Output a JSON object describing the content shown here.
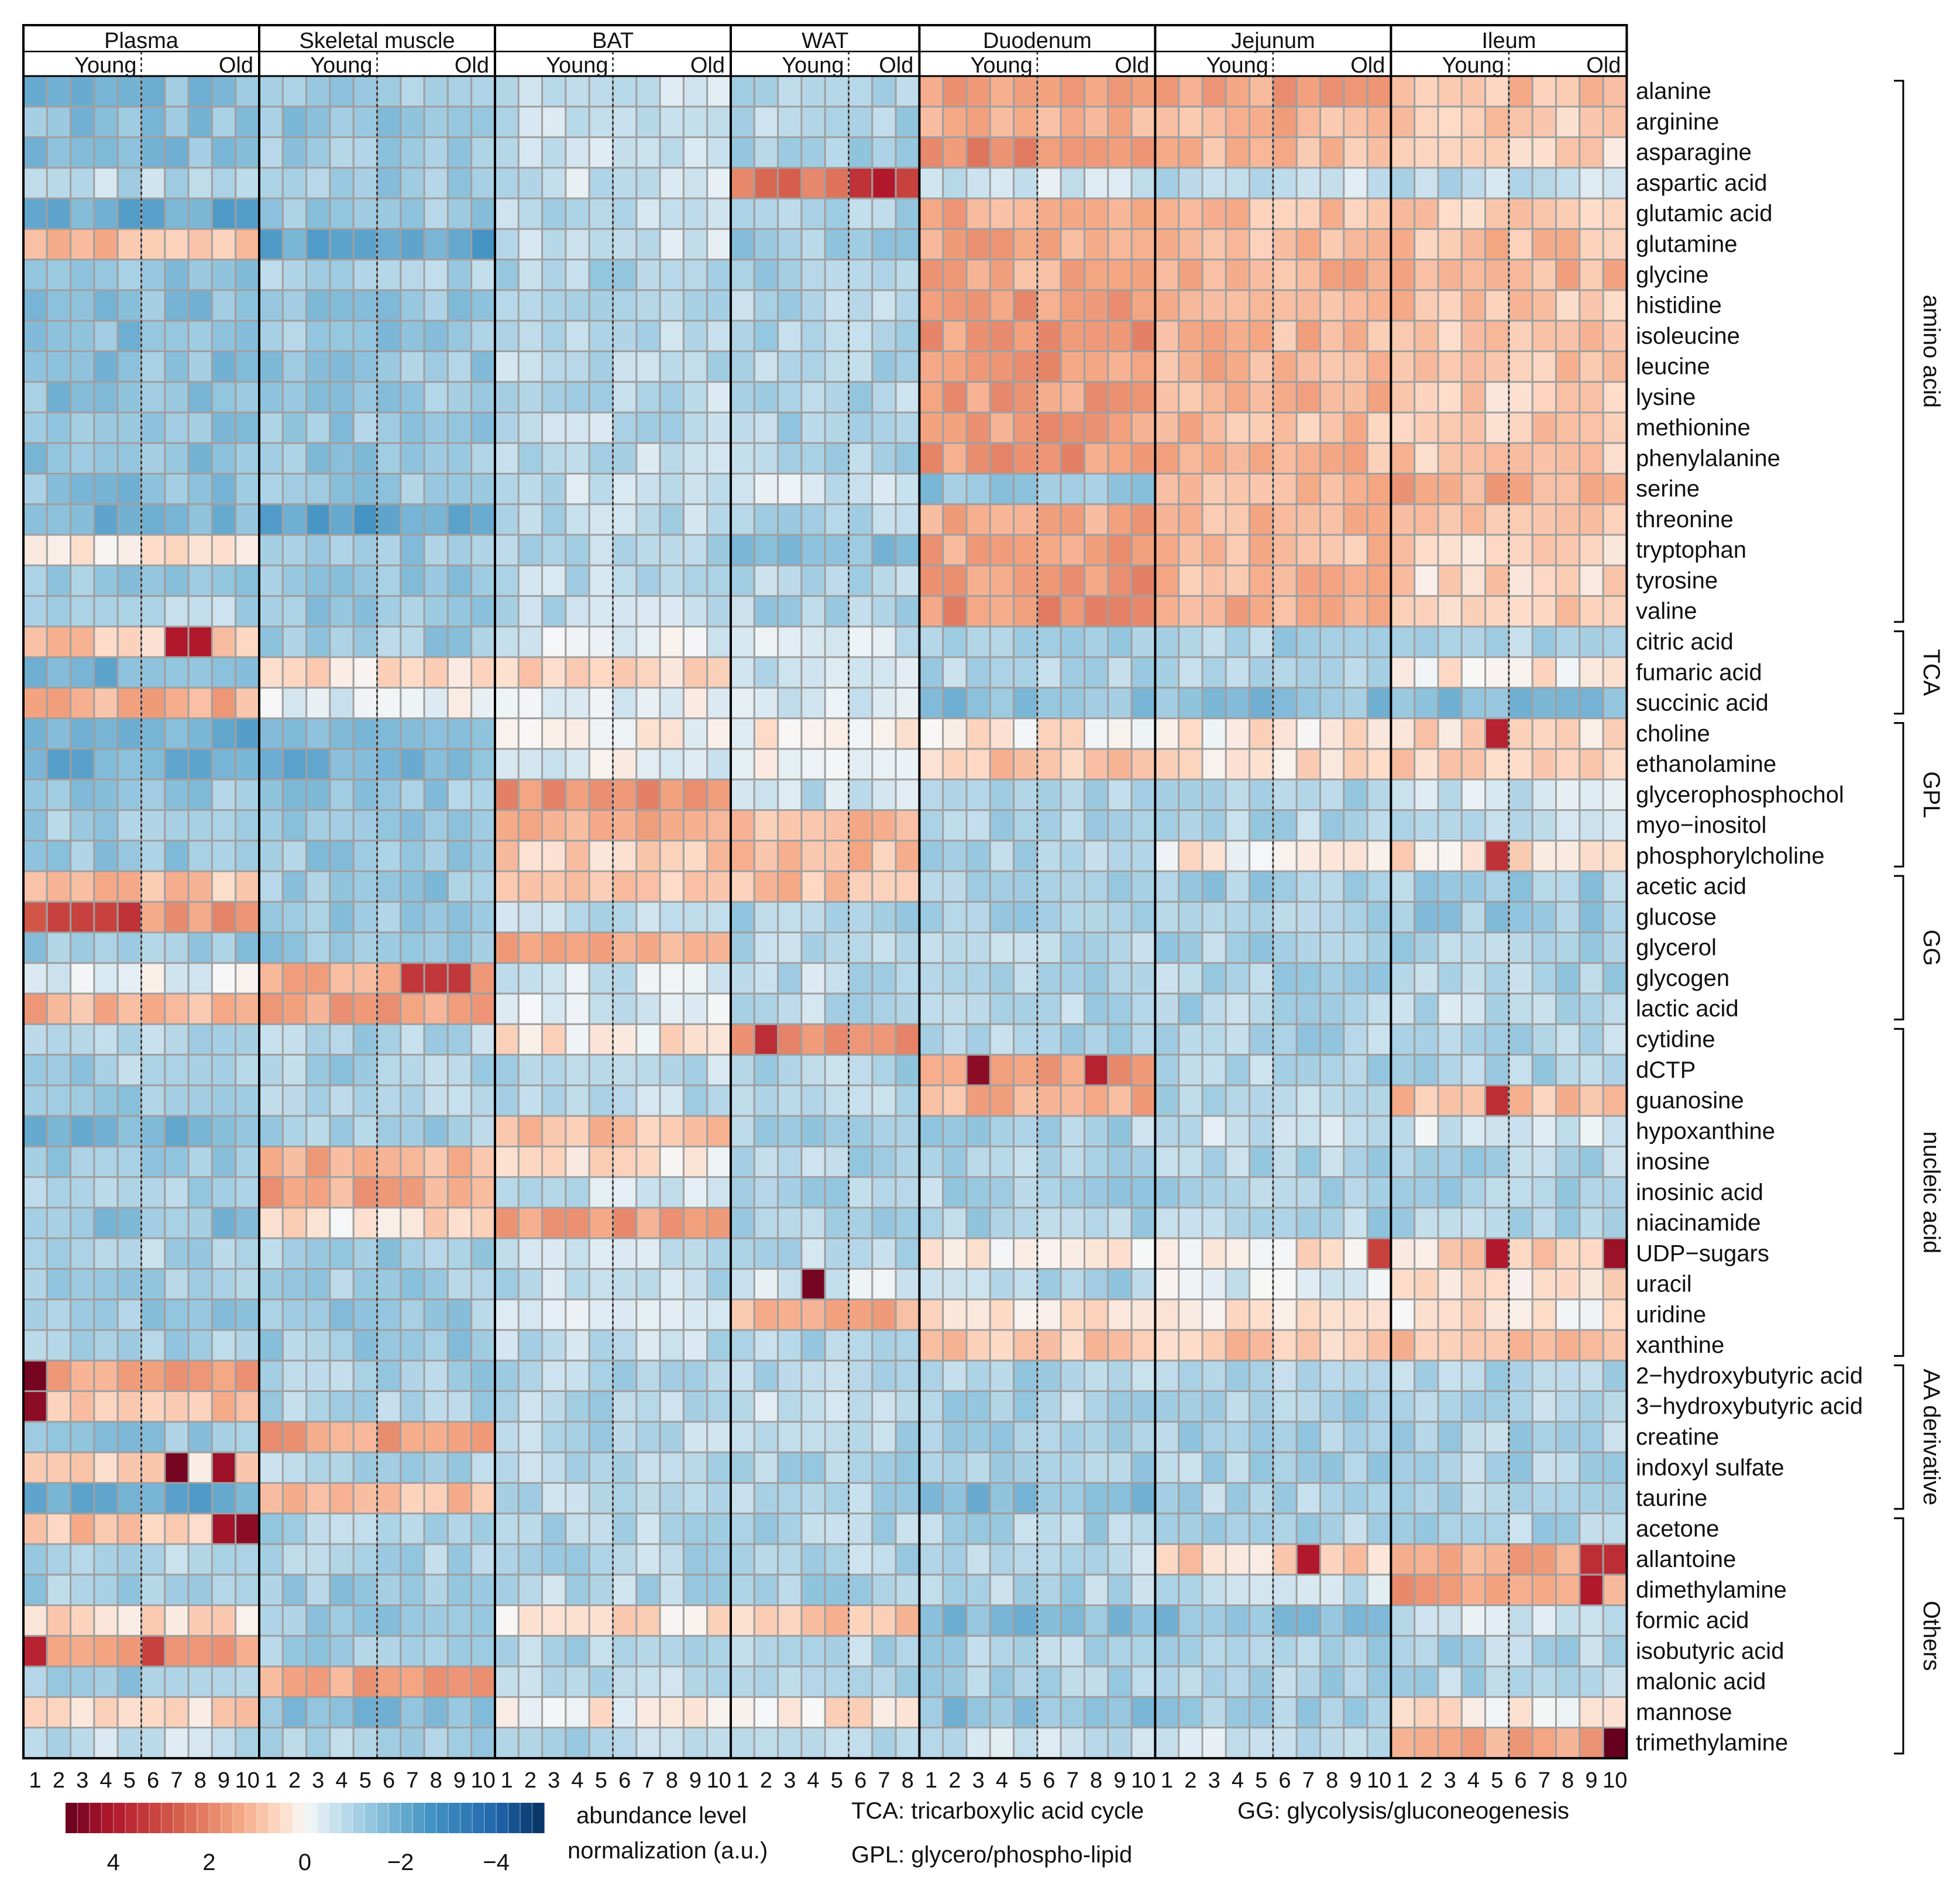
{
  "chart_data": {
    "type": "heatmap",
    "value_scale": "abundance level normalization (a.u.), blue = low, red = high",
    "tissues": [
      {
        "name": "Plasma",
        "n": 10,
        "young_label": "Young",
        "old_label": "Old",
        "split_after": 5
      },
      {
        "name": "Skeletal muscle",
        "n": 10,
        "young_label": "Young",
        "old_label": "Old",
        "split_after": 5
      },
      {
        "name": "BAT",
        "n": 10,
        "young_label": "Young",
        "old_label": "Old",
        "split_after": 5
      },
      {
        "name": "WAT",
        "n": 8,
        "young_label": "Young",
        "old_label": "Old",
        "split_after": 5
      },
      {
        "name": "Duodenum",
        "n": 10,
        "young_label": "Young",
        "old_label": "Old",
        "split_after": 5
      },
      {
        "name": "Jejunum",
        "n": 10,
        "young_label": "Young",
        "old_label": "Old",
        "split_after": 5
      },
      {
        "name": "Ileum",
        "n": 10,
        "young_label": "Young",
        "old_label": "Old",
        "split_after": 5
      }
    ],
    "sample_labels": [
      "1",
      "2",
      "3",
      "4",
      "5",
      "6",
      "7",
      "8",
      "9",
      "10"
    ],
    "metabolites": [
      "alanine",
      "arginine",
      "asparagine",
      "aspartic acid",
      "glutamic acid",
      "glutamine",
      "glycine",
      "histidine",
      "isoleucine",
      "leucine",
      "lysine",
      "methionine",
      "phenylalanine",
      "serine",
      "threonine",
      "tryptophan",
      "tyrosine",
      "valine",
      "citric acid",
      "fumaric acid",
      "succinic acid",
      "choline",
      "ethanolamine",
      "glycerophosphochol",
      "myo−inositol",
      "phosphorylcholine",
      "acetic acid",
      "glucose",
      "glycerol",
      "glycogen",
      "lactic acid",
      "cytidine",
      "dCTP",
      "guanosine",
      "hypoxanthine",
      "inosine",
      "inosinic acid",
      "niacinamide",
      "UDP−sugars",
      "uracil",
      "uridine",
      "xanthine",
      "2−hydroxybutyric acid",
      "3−hydroxybutyric acid",
      "creatine",
      "indoxyl sulfate",
      "taurine",
      "acetone",
      "allantoine",
      "dimethylamine",
      "formic acid",
      "isobutyric acid",
      "malonic acid",
      "mannose",
      "trimethylamine"
    ],
    "groups": [
      {
        "label": "amino acid",
        "start": 0,
        "end": 17
      },
      {
        "label": "TCA",
        "start": 18,
        "end": 20
      },
      {
        "label": "GPL",
        "start": 21,
        "end": 25
      },
      {
        "label": "GG",
        "start": 26,
        "end": 30
      },
      {
        "label": "nucleic acid",
        "start": 31,
        "end": 41
      },
      {
        "label": "AA derivative",
        "start": 42,
        "end": 46
      },
      {
        "label": "Others",
        "start": 47,
        "end": 54
      }
    ],
    "base_values": [
      [
        -1.6,
        -1.3,
        -0.7,
        -1.0,
        1.5,
        1.5,
        1.0
      ],
      [
        -1.5,
        -1.3,
        -0.7,
        -1.0,
        1.3,
        1.2,
        0.8
      ],
      [
        -1.5,
        -1.3,
        -0.7,
        -1.0,
        1.8,
        1.0,
        0.6
      ],
      [
        -0.8,
        -1.3,
        -0.6,
        2.2,
        -0.6,
        -0.7,
        -0.7
      ],
      [
        -2.0,
        -1.3,
        -0.8,
        -1.0,
        1.3,
        1.0,
        0.8
      ],
      [
        1.0,
        -2.2,
        -0.5,
        -1.2,
        1.3,
        1.0,
        1.0
      ],
      [
        -1.5,
        -1.0,
        -1.0,
        -1.0,
        1.3,
        1.2,
        1.1
      ],
      [
        -1.5,
        -1.3,
        -0.8,
        -1.0,
        1.5,
        1.2,
        0.9
      ],
      [
        -1.5,
        -1.3,
        -0.8,
        -1.0,
        1.6,
        1.1,
        0.8
      ],
      [
        -1.5,
        -1.3,
        -0.8,
        -1.0,
        1.6,
        1.1,
        0.8
      ],
      [
        -1.5,
        -1.3,
        -0.8,
        -1.0,
        1.5,
        1.1,
        0.7
      ],
      [
        -1.5,
        -1.3,
        -0.8,
        -1.0,
        1.5,
        1.0,
        0.7
      ],
      [
        -1.5,
        -1.3,
        -0.8,
        -1.0,
        1.6,
        1.1,
        0.8
      ],
      [
        -1.5,
        -1.3,
        -0.7,
        -0.5,
        -1.5,
        1.2,
        1.3
      ],
      [
        -1.8,
        -2.2,
        -0.8,
        -0.9,
        1.3,
        1.1,
        0.8
      ],
      [
        0.3,
        -1.4,
        -0.9,
        -1.5,
        1.4,
        1.0,
        0.6
      ],
      [
        -1.4,
        -1.3,
        -0.8,
        -1.0,
        1.6,
        1.1,
        0.6
      ],
      [
        -1.0,
        -1.3,
        -0.8,
        -1.0,
        1.7,
        1.2,
        0.8
      ],
      [
        0.8,
        -1.2,
        -0.3,
        -0.5,
        -1.3,
        -1.1,
        -1.0
      ],
      [
        -1.8,
        0.5,
        0.7,
        -0.7,
        -1.0,
        -1.0,
        0.2
      ],
      [
        1.2,
        -0.2,
        -0.2,
        -0.5,
        -1.5,
        -1.5,
        -1.5
      ],
      [
        -1.9,
        -1.8,
        0.1,
        0.1,
        0.3,
        0.3,
        0.5
      ],
      [
        -1.9,
        -1.8,
        -0.2,
        -0.1,
        0.8,
        0.5,
        0.6
      ],
      [
        -1.3,
        -1.3,
        1.6,
        -0.7,
        -1.0,
        -1.0,
        -0.6
      ],
      [
        -1.2,
        -1.3,
        1.2,
        1.0,
        -1.0,
        -1.0,
        -0.7
      ],
      [
        -1.3,
        -1.3,
        0.7,
        1.0,
        -1.0,
        0.2,
        0.4
      ],
      [
        0.9,
        -1.3,
        0.8,
        0.9,
        -1.2,
        -1.2,
        -1.2
      ],
      [
        1.6,
        -1.3,
        -0.8,
        -1.0,
        -1.1,
        -1.2,
        -1.3
      ],
      [
        -1.3,
        -1.3,
        1.3,
        -1.0,
        -1.0,
        -1.0,
        -1.0
      ],
      [
        -0.3,
        1.4,
        -0.5,
        -0.8,
        -1.0,
        -1.0,
        -1.0
      ],
      [
        1.2,
        1.5,
        -0.4,
        -0.8,
        -1.0,
        -1.0,
        -0.8
      ],
      [
        -1.0,
        -1.0,
        0.3,
        1.8,
        -1.0,
        -1.0,
        -1.0
      ],
      [
        -1.1,
        -1.1,
        -0.8,
        -1.0,
        1.5,
        -1.0,
        -1.0
      ],
      [
        -1.1,
        -1.0,
        -0.8,
        -1.0,
        1.2,
        -1.0,
        0.9
      ],
      [
        -1.8,
        -1.2,
        1.0,
        -1.0,
        -1.0,
        -0.6,
        -0.5
      ],
      [
        -1.2,
        1.2,
        0.3,
        -1.0,
        -1.0,
        -1.0,
        -1.0
      ],
      [
        -1.2,
        1.4,
        -0.6,
        -1.0,
        -1.0,
        -1.0,
        -1.0
      ],
      [
        -1.5,
        0.4,
        1.5,
        -1.0,
        -1.0,
        -1.0,
        -1.0
      ],
      [
        -1.0,
        -1.2,
        -0.6,
        -0.8,
        0.1,
        0.3,
        0.6
      ],
      [
        -1.2,
        -1.2,
        -0.8,
        -0.5,
        -1.0,
        -0.3,
        0.4
      ],
      [
        -1.2,
        -1.2,
        -0.3,
        1.2,
        0.2,
        0.3,
        0.3
      ],
      [
        -1.2,
        -1.2,
        -0.8,
        -1.0,
        0.8,
        0.8,
        0.9
      ],
      [
        1.5,
        -1.1,
        -0.9,
        -1.0,
        -1.0,
        -1.0,
        -1.0
      ],
      [
        1.0,
        -1.1,
        -0.9,
        -0.5,
        -1.0,
        -1.0,
        -1.0
      ],
      [
        -1.4,
        1.5,
        -0.9,
        -1.0,
        -1.0,
        -1.0,
        -1.0
      ],
      [
        0.5,
        -1.0,
        -0.9,
        -1.0,
        -1.0,
        -1.0,
        -1.0
      ],
      [
        -2.0,
        0.9,
        -0.9,
        -1.0,
        -1.6,
        -1.0,
        -1.0
      ],
      [
        0.9,
        -1.0,
        -0.9,
        -1.0,
        -1.0,
        -1.0,
        -1.0
      ],
      [
        -1.0,
        -1.0,
        -0.9,
        -1.0,
        -0.9,
        0.6,
        1.4
      ],
      [
        -1.2,
        -1.2,
        -0.9,
        -1.0,
        -1.0,
        -0.6,
        1.5
      ],
      [
        0.5,
        -1.2,
        0.4,
        0.8,
        -1.6,
        -1.5,
        -0.6
      ],
      [
        1.4,
        -1.2,
        -0.9,
        -1.0,
        -1.0,
        -1.0,
        -1.0
      ],
      [
        -1.2,
        1.4,
        -0.9,
        -1.0,
        -1.0,
        -1.0,
        -1.0
      ],
      [
        0.6,
        -1.6,
        0.1,
        0.4,
        -1.5,
        -1.1,
        0.3
      ],
      [
        -0.7,
        -1.0,
        -0.9,
        -1.0,
        -0.6,
        -0.6,
        1.3
      ]
    ],
    "hot_spots": [
      {
        "row": 3,
        "tissue": 3,
        "sample": 6,
        "value": 3.5
      },
      {
        "row": 3,
        "tissue": 3,
        "sample": 7,
        "value": 4.0
      },
      {
        "row": 18,
        "tissue": 0,
        "sample": 7,
        "value": 4.0
      },
      {
        "row": 18,
        "tissue": 0,
        "sample": 8,
        "value": 4.0
      },
      {
        "row": 21,
        "tissue": 6,
        "sample": 5,
        "value": 3.8
      },
      {
        "row": 25,
        "tissue": 6,
        "sample": 5,
        "value": 3.5
      },
      {
        "row": 27,
        "tissue": 0,
        "sample": 2,
        "value": 3.2
      },
      {
        "row": 27,
        "tissue": 0,
        "sample": 3,
        "value": 3.2
      },
      {
        "row": 27,
        "tissue": 0,
        "sample": 4,
        "value": 3.2
      },
      {
        "row": 27,
        "tissue": 0,
        "sample": 5,
        "value": 3.5
      },
      {
        "row": 29,
        "tissue": 1,
        "sample": 7,
        "value": 3.4
      },
      {
        "row": 29,
        "tissue": 1,
        "sample": 8,
        "value": 3.4
      },
      {
        "row": 29,
        "tissue": 1,
        "sample": 9,
        "value": 3.4
      },
      {
        "row": 31,
        "tissue": 3,
        "sample": 2,
        "value": 3.6
      },
      {
        "row": 32,
        "tissue": 4,
        "sample": 3,
        "value": 4.5
      },
      {
        "row": 32,
        "tissue": 4,
        "sample": 8,
        "value": 3.8
      },
      {
        "row": 33,
        "tissue": 6,
        "sample": 5,
        "value": 3.6
      },
      {
        "row": 38,
        "tissue": 6,
        "sample": 5,
        "value": 4.0
      },
      {
        "row": 38,
        "tissue": 6,
        "sample": 10,
        "value": 4.3
      },
      {
        "row": 38,
        "tissue": 5,
        "sample": 10,
        "value": 3.2
      },
      {
        "row": 39,
        "tissue": 3,
        "sample": 4,
        "value": 4.8
      },
      {
        "row": 42,
        "tissue": 0,
        "sample": 1,
        "value": 4.8
      },
      {
        "row": 43,
        "tissue": 0,
        "sample": 1,
        "value": 4.5
      },
      {
        "row": 45,
        "tissue": 0,
        "sample": 7,
        "value": 4.8
      },
      {
        "row": 45,
        "tissue": 0,
        "sample": 9,
        "value": 4.3
      },
      {
        "row": 47,
        "tissue": 0,
        "sample": 9,
        "value": 4.2
      },
      {
        "row": 47,
        "tissue": 0,
        "sample": 10,
        "value": 4.5
      },
      {
        "row": 48,
        "tissue": 5,
        "sample": 7,
        "value": 4.0
      },
      {
        "row": 48,
        "tissue": 6,
        "sample": 9,
        "value": 3.6
      },
      {
        "row": 48,
        "tissue": 6,
        "sample": 10,
        "value": 3.6
      },
      {
        "row": 49,
        "tissue": 6,
        "sample": 9,
        "value": 4.0
      },
      {
        "row": 51,
        "tissue": 0,
        "sample": 1,
        "value": 3.8
      },
      {
        "row": 51,
        "tissue": 0,
        "sample": 6,
        "value": 3.2
      },
      {
        "row": 54,
        "tissue": 6,
        "sample": 10,
        "value": 5.0
      },
      {
        "row": 3,
        "tissue": 3,
        "sample": 8,
        "value": 3.2
      },
      {
        "row": 27,
        "tissue": 0,
        "sample": 1,
        "value": 2.8
      }
    ],
    "legend": {
      "title_line1": "abundance level",
      "title_line2": "normalization (a.u.)",
      "ticks": [
        {
          "value": 4,
          "label": "4"
        },
        {
          "value": 2,
          "label": "2"
        },
        {
          "value": 0,
          "label": "0"
        },
        {
          "value": -2,
          "label": "−2"
        },
        {
          "value": -4,
          "label": "−4"
        }
      ],
      "range": [
        5,
        -5
      ]
    },
    "abbreviations": [
      "TCA: tricarboxylic acid cycle",
      "GG: glycolysis/gluconeogenesis",
      "GPL: glycero/phospho-lipid"
    ],
    "colors": {
      "high": "#67001f",
      "mid": "#f7f7f7",
      "low": "#053061",
      "grid": "#a0a0a0",
      "border": "#000000"
    }
  }
}
